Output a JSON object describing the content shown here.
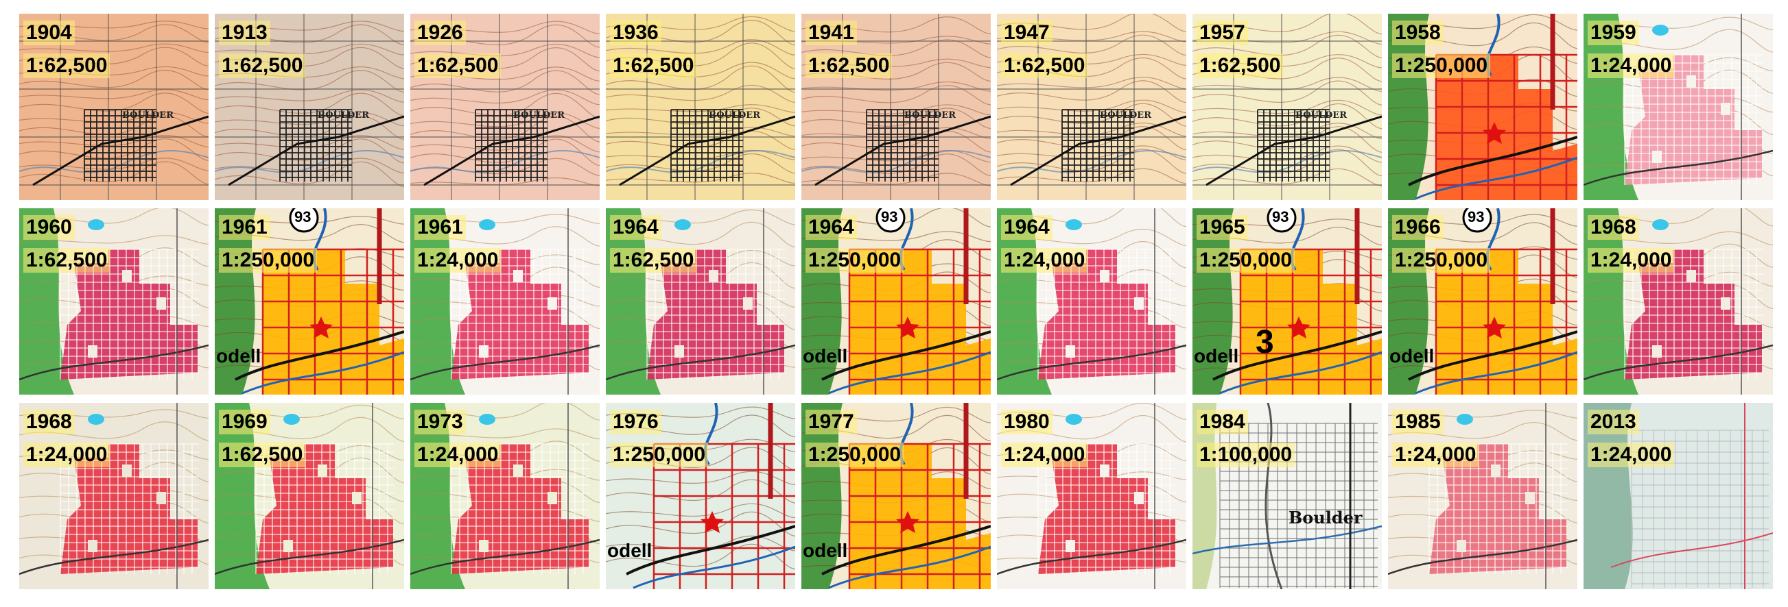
{
  "tiles": [
    {
      "year": "1904",
      "scale": "1:62,500",
      "style": "topo",
      "bg": "#eeb58e",
      "place": "BOULDER"
    },
    {
      "year": "1913",
      "scale": "1:62,500",
      "style": "topo",
      "bg": "#dcc9b8",
      "place": "BOULDER"
    },
    {
      "year": "1926",
      "scale": "1:62,500",
      "style": "topo",
      "bg": "#f1c9b6",
      "place": "BOULDER"
    },
    {
      "year": "1936",
      "scale": "1:62,500",
      "style": "topo",
      "bg": "#f5dfa1",
      "place": "BOULDER"
    },
    {
      "year": "1941",
      "scale": "1:62,500",
      "style": "topo",
      "bg": "#efc7ad",
      "place": "BOULDER"
    },
    {
      "year": "1947",
      "scale": "1:62,500",
      "style": "topo",
      "bg": "#f6dfb9",
      "place": "BOULDER"
    },
    {
      "year": "1957",
      "scale": "1:62,500",
      "style": "topo",
      "bg": "#f5eecb",
      "place": "BOULDER"
    },
    {
      "year": "1958",
      "scale": "1:250,000",
      "style": "small",
      "bg": "#f7e6cc",
      "fill": "#ff5a1a"
    },
    {
      "year": "1959",
      "scale": "1:24,000",
      "style": "urban",
      "bg": "#f7f3ee",
      "fill": "#f29bab",
      "green": true
    },
    {
      "year": "1960",
      "scale": "1:62,500",
      "style": "urban",
      "bg": "#f3ece0",
      "fill": "#d42f5c",
      "green": true
    },
    {
      "year": "1961",
      "scale": "1:250,000",
      "style": "small",
      "bg": "#f5ead2",
      "fill": "#ffb400",
      "route": "93",
      "overtext": "odell"
    },
    {
      "year": "1961",
      "scale": "1:24,000",
      "style": "urban",
      "bg": "#f7f3ee",
      "fill": "#e2365e",
      "green": true
    },
    {
      "year": "1964",
      "scale": "1:62,500",
      "style": "urban",
      "bg": "#f3ece0",
      "fill": "#d42f5c",
      "green": true
    },
    {
      "year": "1964",
      "scale": "1:250,000",
      "style": "small",
      "bg": "#f5ead2",
      "fill": "#ffb400",
      "route": "93",
      "overtext": "odell"
    },
    {
      "year": "1964",
      "scale": "1:24,000",
      "style": "urban",
      "bg": "#f7f3ee",
      "fill": "#e2365e",
      "green": true
    },
    {
      "year": "1965",
      "scale": "1:250,000",
      "style": "small",
      "bg": "#f5ead2",
      "fill": "#ffb400",
      "route": "93",
      "overtext": "odell",
      "bigtext": "3"
    },
    {
      "year": "1966",
      "scale": "1:250,000",
      "style": "small",
      "bg": "#f5ead2",
      "fill": "#ffb400",
      "route": "93",
      "overtext": "odell"
    },
    {
      "year": "1968",
      "scale": "1:24,000",
      "style": "urban",
      "bg": "#f3ece0",
      "fill": "#d42f5c",
      "green": true
    },
    {
      "year": "1968",
      "scale": "1:24,000",
      "style": "urban",
      "bg": "#ece7d8",
      "fill": "#e63344"
    },
    {
      "year": "1969",
      "scale": "1:62,500",
      "style": "urban",
      "bg": "#eef0d8",
      "fill": "#e63344",
      "green": true
    },
    {
      "year": "1973",
      "scale": "1:24,000",
      "style": "urban",
      "bg": "#eef0d8",
      "fill": "#e63344",
      "green": true
    },
    {
      "year": "1976",
      "scale": "1:250,000",
      "style": "small",
      "bg": "#e4eee4",
      "fill": "none",
      "overtext": "odell"
    },
    {
      "year": "1977",
      "scale": "1:250,000",
      "style": "small",
      "bg": "#f5ead2",
      "fill": "#ffb400",
      "overtext": "odell"
    },
    {
      "year": "1980",
      "scale": "1:24,000",
      "style": "urban",
      "bg": "#f6f3ee",
      "fill": "#e63344"
    },
    {
      "year": "1984",
      "scale": "1:100,000",
      "style": "gray",
      "bg": "#f4f4f0",
      "place": "Boulder"
    },
    {
      "year": "1985",
      "scale": "1:24,000",
      "style": "urban",
      "bg": "#f1ecdf",
      "fill": "#e96a7a"
    },
    {
      "year": "2013",
      "scale": "1:24,000",
      "style": "modern",
      "bg": "#dfe9e6"
    }
  ]
}
